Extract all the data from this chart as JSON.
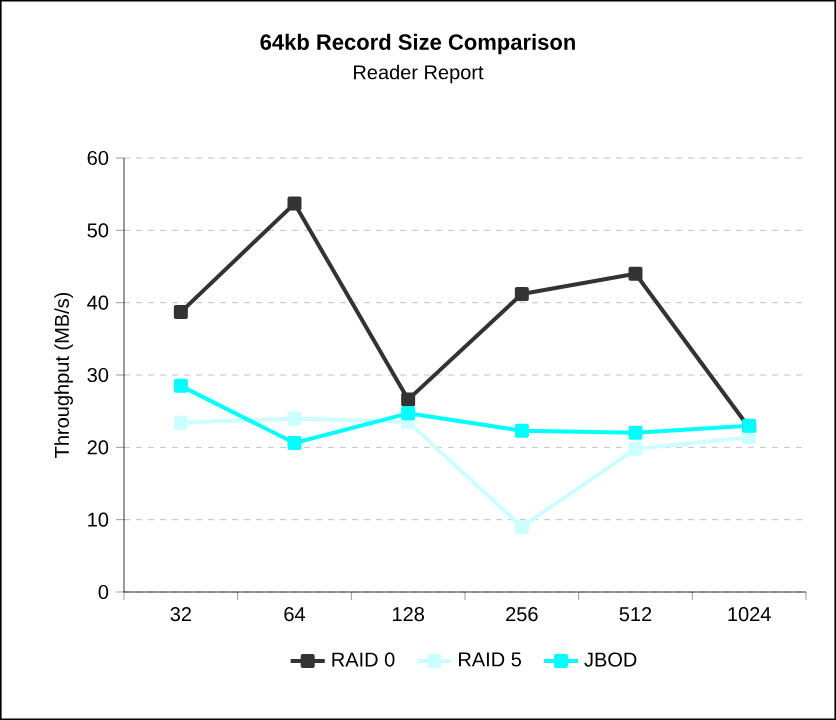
{
  "chart_data": {
    "type": "line",
    "title": "**64kb Record Size Comparison**",
    "subtitle": "Reader Report",
    "ylabel": "Throughput (MB/s)",
    "categories": [
      "32",
      "64",
      "128",
      "256",
      "512",
      "1024"
    ],
    "series": [
      {
        "name": "RAID 0",
        "color": "#333333",
        "values": [
          38.7,
          53.7,
          26.6,
          41.2,
          44.0,
          22.7
        ]
      },
      {
        "name": "RAID 5",
        "color": "#ccffff",
        "values": [
          23.4,
          24.0,
          23.5,
          9.0,
          19.8,
          21.4
        ]
      },
      {
        "name": "JBOD",
        "color": "#00ffff",
        "values": [
          28.5,
          20.6,
          24.7,
          22.3,
          22.0,
          23.0
        ]
      }
    ],
    "ylim": [
      0,
      60
    ],
    "yticks": [
      0,
      10,
      20,
      30,
      40,
      50,
      60
    ],
    "grid": "y",
    "legend": "bottom",
    "marker": "square",
    "line_style": "solid"
  }
}
